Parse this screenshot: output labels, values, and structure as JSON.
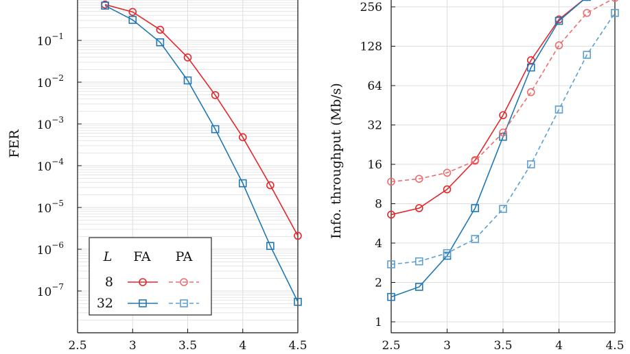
{
  "chart_data": [
    {
      "type": "line",
      "xlabel": "",
      "ylabel": "FER",
      "yscale": "log",
      "xlim": [
        2.5,
        4.5
      ],
      "ylim_exp": [
        -8,
        0
      ],
      "x_ticks": [
        "2.5",
        "3",
        "3.5",
        "4",
        "4.5"
      ],
      "x_tick_values": [
        2.5,
        3,
        3.5,
        4,
        4.5
      ],
      "y_tick_exponents": [
        -1,
        -2,
        -3,
        -4,
        -5,
        -6,
        -7
      ],
      "y_tick_base": "10",
      "grid": true,
      "series": [
        {
          "group": "8",
          "scheme": "FA",
          "x": [
            2.75,
            3.0,
            3.25,
            3.5,
            3.75,
            4.0,
            4.25,
            4.5
          ],
          "y": [
            0.72,
            0.48,
            0.18,
            0.039,
            0.0049,
            0.00048,
            3.4e-05,
            2.1e-06
          ]
        },
        {
          "group": "32",
          "scheme": "FA",
          "x": [
            2.75,
            3.0,
            3.25,
            3.5,
            3.75,
            4.0,
            4.25,
            4.5
          ],
          "y": [
            0.68,
            0.31,
            0.09,
            0.011,
            0.00075,
            3.8e-05,
            1.2e-06,
            5.5e-08
          ]
        }
      ],
      "legend": {
        "header": [
          "L",
          "FA",
          "PA"
        ],
        "rows": [
          "8",
          "32"
        ],
        "placement": "bottom-left"
      }
    },
    {
      "type": "line",
      "xlabel": "",
      "ylabel": "Info. throughput (Mb/s)",
      "yscale": "log2",
      "xlim": [
        2.5,
        4.5
      ],
      "ylim": [
        0.9,
        330
      ],
      "x_ticks": [
        "2.5",
        "3",
        "3.5",
        "4",
        "4.5"
      ],
      "x_tick_values": [
        2.5,
        3,
        3.5,
        4,
        4.5
      ],
      "y_ticks": [
        "1",
        "2",
        "4",
        "8",
        "16",
        "32",
        "64",
        "128",
        "256"
      ],
      "y_tick_values": [
        1,
        2,
        4,
        8,
        16,
        32,
        64,
        128,
        256
      ],
      "grid": true,
      "series": [
        {
          "group": "8",
          "scheme": "FA",
          "x": [
            2.5,
            2.75,
            3.0,
            3.25,
            3.5,
            3.75,
            4.0,
            4.25,
            4.5
          ],
          "y": [
            6.6,
            7.4,
            10.3,
            17.2,
            38,
            100,
            205,
            305,
            340
          ]
        },
        {
          "group": "32",
          "scheme": "FA",
          "x": [
            2.5,
            2.75,
            3.0,
            3.25,
            3.5,
            3.75,
            4.0,
            4.25
          ],
          "y": [
            1.55,
            1.85,
            3.2,
            7.4,
            26,
            88,
            200,
            305
          ]
        },
        {
          "group": "8",
          "scheme": "PA",
          "x": [
            2.5,
            2.75,
            3.0,
            3.25,
            3.5,
            3.75,
            4.0,
            4.25,
            4.5
          ],
          "y": [
            11.8,
            12.4,
            13.8,
            17.0,
            28,
            57,
            130,
            230,
            300
          ]
        },
        {
          "group": "32",
          "scheme": "PA",
          "x": [
            2.5,
            2.75,
            3.0,
            3.25,
            3.5,
            3.75,
            4.0,
            4.25,
            4.5
          ],
          "y": [
            2.75,
            2.9,
            3.35,
            4.3,
            7.3,
            16,
            42,
            110,
            230
          ]
        }
      ]
    }
  ],
  "colors": {
    "red": "#e3262a",
    "blue": "#1f77b4",
    "red_light": "#ee6b6e",
    "blue_light": "#5b9fd0",
    "grid": "#dddddd",
    "axis": "#111111"
  }
}
